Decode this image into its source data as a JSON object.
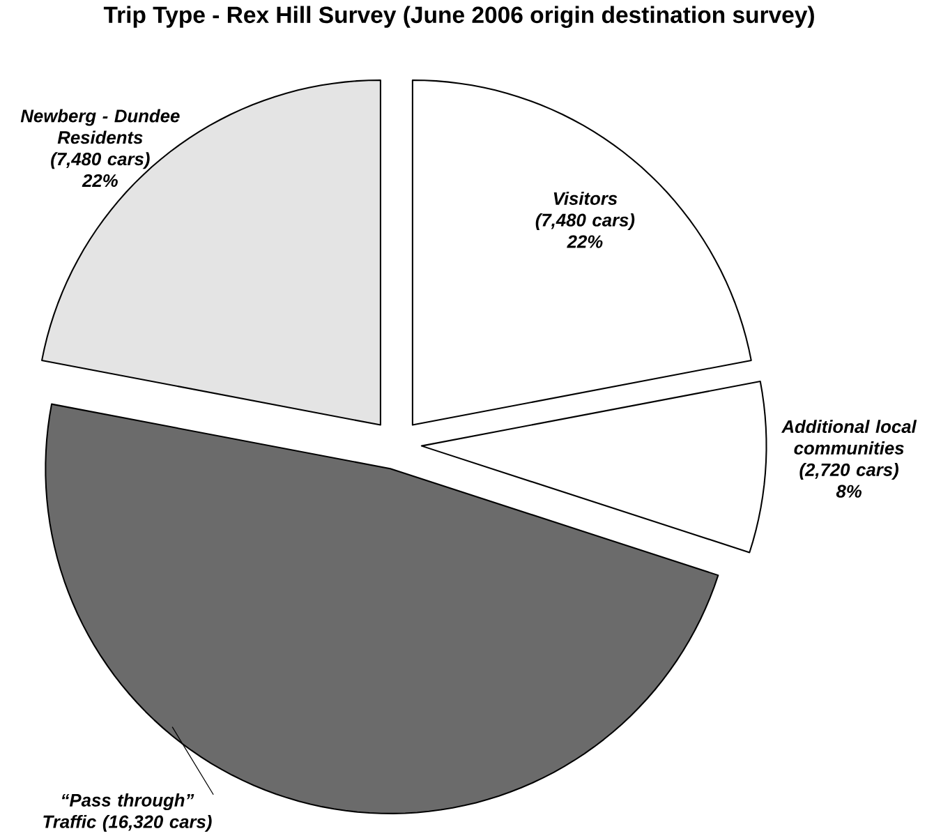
{
  "chart_data": {
    "type": "pie",
    "title": "Trip Type - Rex Hill Survey (June 2006 origin destination survey)",
    "categories": [
      "Visitors (7,480 cars)",
      "Additional local communities (2,720 cars)",
      "“Pass through” Traffic (16,320 cars)",
      "Newberg - Dundee Residents (7,480 cars)"
    ],
    "values": [
      22,
      8,
      48,
      22
    ],
    "value_labels": [
      "22%",
      "8%",
      null,
      "22%"
    ],
    "colors": [
      "#ffffff",
      "#ffffff",
      "#6b6b6b",
      "#e4e4e4"
    ]
  }
}
